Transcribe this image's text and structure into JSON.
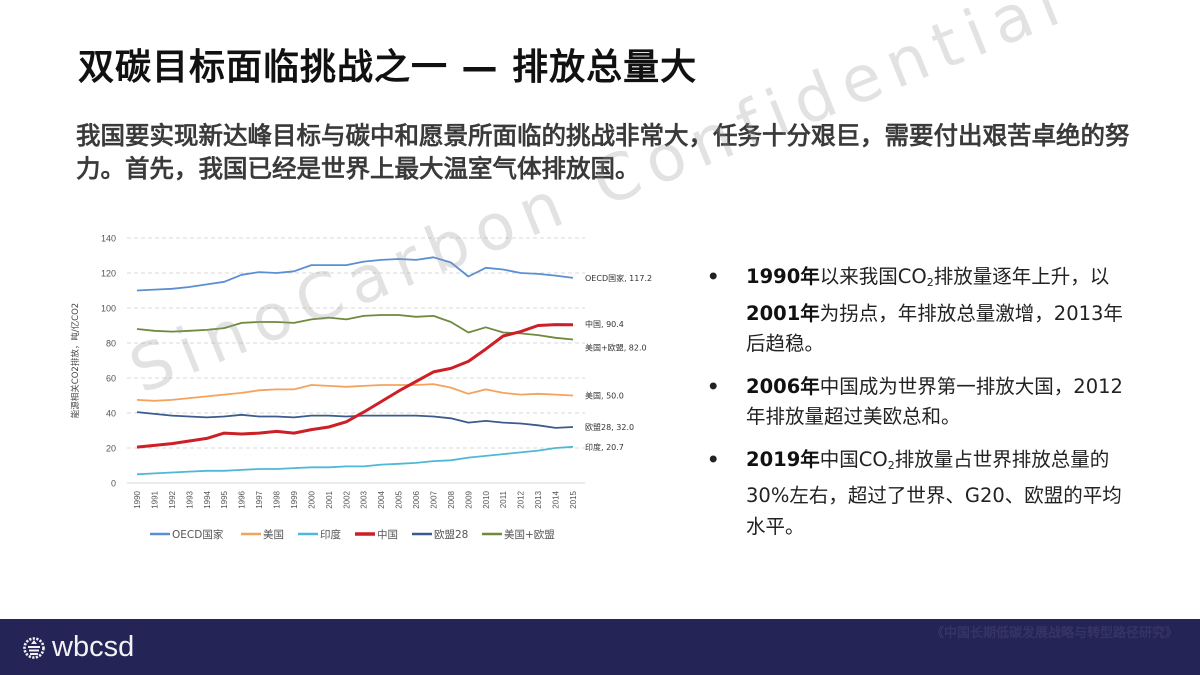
{
  "slide": {
    "title": "双碳目标面临挑战之一 — 排放总量大",
    "subtitle": "我国要实现新达峰目标与碳中和愿景所面临的挑战非常大，任务十分艰巨，需要付出艰苦卓绝的努力。首先，我国已经是世界上最大温室气体排放国。",
    "watermark": "SinoCarbon Confidential"
  },
  "bullets": [
    {
      "bullet_char": "•",
      "parts": [
        {
          "text": "1990年",
          "bold": true
        },
        {
          "text": "以来我国CO"
        },
        {
          "text": "2",
          "sub": true
        },
        {
          "text": "排放量逐年上升，以"
        },
        {
          "text": "2001年",
          "bold": true
        },
        {
          "text": "为拐点，年排放总量激增，2013年后趋稳。"
        }
      ]
    },
    {
      "bullet_char": "•",
      "parts": [
        {
          "text": "2006年",
          "bold": true
        },
        {
          "text": "中国成为世界第一排放大国，2012年排放量超过美欧总和。"
        }
      ]
    },
    {
      "bullet_char": "•",
      "parts": [
        {
          "text": "2019年",
          "bold": true
        },
        {
          "text": "中国CO"
        },
        {
          "text": "2",
          "sub": true
        },
        {
          "text": "排放量占世界排放总量的30%左右，超过了世界、G20、欧盟的平均水平。"
        }
      ]
    }
  ],
  "footer": {
    "logo_text": "wbcsd",
    "source": "《中国长期低碳发展战略与转型路径研究》",
    "bg_color": "#252456"
  },
  "chart_data": {
    "type": "line",
    "title": "",
    "xlabel": "",
    "ylabel": "能源相关CO2排放，吨/亿CO2",
    "ylim": [
      0,
      140
    ],
    "yticks": [
      0,
      20,
      40,
      60,
      80,
      100,
      120,
      140
    ],
    "grid": "horizontal dashed",
    "legend_position": "bottom",
    "x": [
      1990,
      1991,
      1992,
      1993,
      1994,
      1995,
      1996,
      1997,
      1998,
      1999,
      2000,
      2001,
      2002,
      2003,
      2004,
      2005,
      2006,
      2007,
      2008,
      2009,
      2010,
      2011,
      2012,
      2013,
      2014,
      2015
    ],
    "series": [
      {
        "name": "OECD国家",
        "color": "#5b8fd1",
        "end_label": "OECD国家, 117.2",
        "values": [
          110,
          110.5,
          111,
          112,
          113.5,
          115,
          119,
          120.5,
          120,
          121,
          124.5,
          124.5,
          124.5,
          126.5,
          127.5,
          128,
          127.5,
          129,
          126,
          118,
          123,
          122,
          120,
          119.5,
          118.5,
          117.2
        ]
      },
      {
        "name": "美国",
        "color": "#f5a25d",
        "end_label": "美国, 50.0",
        "values": [
          47.5,
          47,
          47.5,
          48.5,
          49.5,
          50.5,
          51.5,
          53,
          53.5,
          53.5,
          56,
          55.5,
          55,
          55.5,
          56,
          56,
          56,
          56.5,
          54.5,
          51,
          53.5,
          51.5,
          50.5,
          51,
          50.5,
          50.0
        ]
      },
      {
        "name": "印度",
        "color": "#4fb8d6",
        "end_label": "印度, 20.7",
        "values": [
          5,
          5.5,
          6,
          6.5,
          7,
          7,
          7.5,
          8,
          8,
          8.5,
          9,
          9,
          9.5,
          9.5,
          10.5,
          11,
          11.5,
          12.5,
          13,
          14.5,
          15.5,
          16.5,
          17.5,
          18.5,
          20,
          20.7
        ]
      },
      {
        "name": "中国",
        "color": "#cc1f26",
        "end_label": "中国, 90.4",
        "values": [
          20.5,
          21.5,
          22.5,
          24,
          25.5,
          28.5,
          28,
          28.5,
          29.5,
          28.5,
          30.5,
          32,
          35,
          40.5,
          46.5,
          52.5,
          58,
          63.5,
          65.5,
          69.5,
          76.5,
          84,
          86.5,
          90,
          90.5,
          90.4
        ]
      },
      {
        "name": "欧盟28",
        "color": "#3d5a8e",
        "end_label": "欧盟28, 32.0",
        "values": [
          40.5,
          39.5,
          38.5,
          38,
          37.5,
          38,
          39,
          38,
          38,
          37.5,
          38.5,
          38.5,
          38,
          38.5,
          38.5,
          38.5,
          38.5,
          38,
          37,
          34.5,
          35.5,
          34.5,
          34,
          33,
          31.5,
          32.0
        ]
      },
      {
        "name": "美国+欧盟",
        "color": "#6e8a3e",
        "end_label": "美国+欧盟, 82.0",
        "values": [
          88,
          87,
          86.5,
          87,
          87.5,
          88.5,
          91.5,
          92,
          92,
          91.5,
          93.5,
          94.5,
          93.5,
          95.5,
          96,
          96,
          95,
          95.5,
          92,
          86,
          89,
          86,
          85.5,
          84.5,
          83,
          82.0
        ]
      }
    ]
  }
}
